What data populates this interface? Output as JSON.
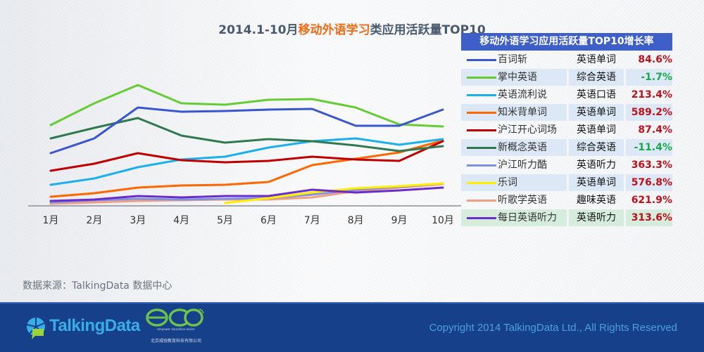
{
  "title": {
    "prefix": "2014.1-10月",
    "highlight": "移动外语学习",
    "suffix": "类应用活跃量TOP10"
  },
  "table": {
    "header": "移动外语学习应用活跃量TOP10增长率",
    "rows": [
      {
        "app": "百词斩",
        "category": "英语单词",
        "growth": "84.6%",
        "color": "#3a55d0",
        "trend": "pos"
      },
      {
        "app": "掌中英语",
        "category": "综合英语",
        "growth": "-1.7%",
        "color": "#66cc33",
        "trend": "neg"
      },
      {
        "app": "英语流利说",
        "category": "英语口语",
        "growth": "213.4%",
        "color": "#1ab0ee",
        "trend": "pos"
      },
      {
        "app": "知米背单词",
        "category": "英语单词",
        "growth": "589.2%",
        "color": "#ff6600",
        "trend": "pos"
      },
      {
        "app": "沪江开心词场",
        "category": "英语单词",
        "growth": "87.4%",
        "color": "#c00000",
        "trend": "pos"
      },
      {
        "app": "新概念英语",
        "category": "综合英语",
        "growth": "-11.4%",
        "color": "#2e7a50",
        "trend": "neg"
      },
      {
        "app": "沪江听力酷",
        "category": "英语听力",
        "growth": "363.3%",
        "color": "#8090e0",
        "trend": "pos"
      },
      {
        "app": "乐词",
        "category": "英语单词",
        "growth": "576.8%",
        "color": "#ffee00",
        "trend": "pos"
      },
      {
        "app": "听歌学英语",
        "category": "趣味英语",
        "growth": "621.9%",
        "color": "#f0a080",
        "trend": "pos"
      },
      {
        "app": "每日英语听力",
        "category": "英语听力",
        "growth": "313.6%",
        "color": "#6a2ccc",
        "trend": "pos"
      }
    ]
  },
  "source": "数据来源：TalkingData 数据中心",
  "footer": {
    "brand": "TalkingData",
    "partner_logo": "eco",
    "partner_tagline": "empower education online",
    "partner_cn": "北京威锐教育科技有限公司",
    "copyright": "Copyright 2014 TalkingData Ltd., All Rights Reserved"
  },
  "chart_data": {
    "type": "line",
    "title": "2014.1-10月移动外语学习类应用活跃量TOP10",
    "xlabel": "",
    "ylabel": "",
    "y_axis_visible": false,
    "y_units": "relative activity index (no y-axis shown; estimated)",
    "ylim": [
      0,
      175
    ],
    "grid": false,
    "legend": "right (table)",
    "x": [
      "1月",
      "2月",
      "3月",
      "4月",
      "5月",
      "6月",
      "7月",
      "8月",
      "9月",
      "10月"
    ],
    "series": [
      {
        "name": "百词斩",
        "color": "#3a55d0",
        "values": [
          75,
          96,
          140,
          134,
          135,
          137,
          138,
          114,
          114,
          137
        ]
      },
      {
        "name": "掌中英语",
        "color": "#66cc33",
        "values": [
          115,
          146,
          172,
          146,
          144,
          151,
          152,
          140,
          116,
          113
        ]
      },
      {
        "name": "英语流利说",
        "color": "#1ab0ee",
        "values": [
          30,
          39,
          55,
          66,
          70,
          83,
          92,
          96,
          87,
          95
        ]
      },
      {
        "name": "知米背单词",
        "color": "#ff6600",
        "values": [
          13,
          18,
          26,
          29,
          30,
          34,
          58,
          67,
          76,
          93
        ]
      },
      {
        "name": "沪江开心词场",
        "color": "#c00000",
        "values": [
          50,
          60,
          75,
          65,
          62,
          64,
          70,
          66,
          64,
          92
        ]
      },
      {
        "name": "新概念英语",
        "color": "#2e7a50",
        "values": [
          96,
          111,
          125,
          100,
          90,
          95,
          92,
          86,
          78,
          85
        ]
      },
      {
        "name": "沪江听力酷",
        "color": "#8090e0",
        "values": [
          5,
          8,
          10,
          9,
          10,
          11,
          16,
          23,
          27,
          32
        ]
      },
      {
        "name": "乐词",
        "color": "#ffee00",
        "values": [
          null,
          null,
          null,
          null,
          4,
          11,
          19,
          25,
          28,
          32
        ]
      },
      {
        "name": "听歌学英语",
        "color": "#f0a080",
        "values": [
          3,
          5,
          7,
          8,
          9,
          9,
          12,
          21,
          26,
          31
        ]
      },
      {
        "name": "每日英语听力",
        "color": "#6a2ccc",
        "values": [
          7,
          9,
          14,
          12,
          14,
          14,
          23,
          19,
          22,
          26
        ]
      }
    ]
  }
}
